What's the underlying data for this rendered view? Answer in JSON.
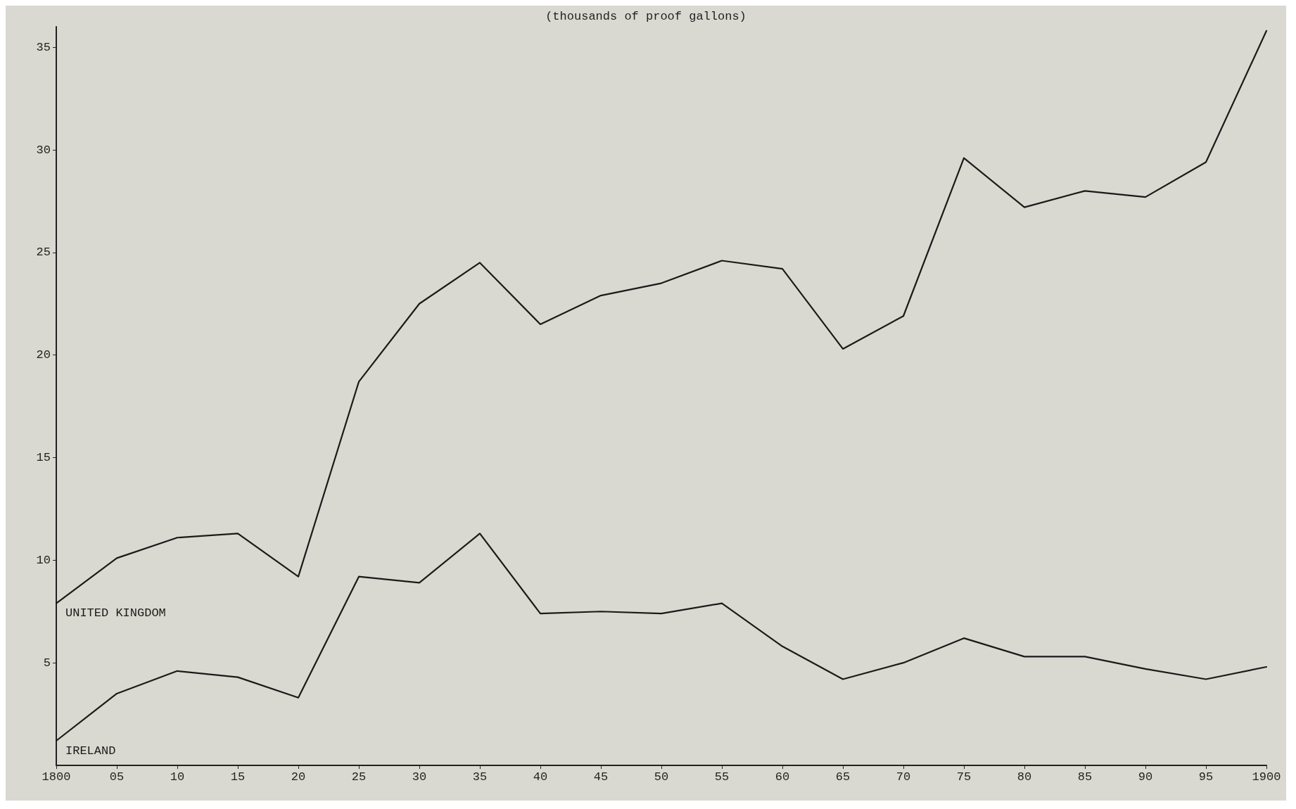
{
  "chart_data": {
    "type": "line",
    "title": "(thousands of proof gallons)",
    "x": [
      1800,
      1805,
      1810,
      1815,
      1820,
      1825,
      1830,
      1835,
      1840,
      1845,
      1850,
      1855,
      1860,
      1865,
      1870,
      1875,
      1880,
      1885,
      1890,
      1895,
      1900
    ],
    "series": [
      {
        "name": "UNITED KINGDOM",
        "color": "#1a1a1a",
        "values": [
          7.9,
          10.1,
          11.1,
          11.3,
          9.2,
          18.7,
          22.5,
          24.5,
          21.5,
          22.9,
          23.5,
          24.6,
          24.2,
          20.3,
          21.9,
          29.6,
          27.2,
          28.0,
          27.7,
          29.4,
          35.8
        ]
      },
      {
        "name": "IRELAND",
        "color": "#1a1a1a",
        "values": [
          1.2,
          3.5,
          4.6,
          4.3,
          3.3,
          9.2,
          8.9,
          11.3,
          7.4,
          7.5,
          7.4,
          7.9,
          5.8,
          4.2,
          5.0,
          6.2,
          5.3,
          5.3,
          4.7,
          4.2,
          4.8
        ]
      }
    ],
    "xlim": [
      1800,
      1900
    ],
    "xticks": [
      1800,
      {
        "value": 1805,
        "label": "05"
      },
      {
        "value": 1810,
        "label": "10"
      },
      {
        "value": 1815,
        "label": "15"
      },
      {
        "value": 1820,
        "label": "20"
      },
      {
        "value": 1825,
        "label": "25"
      },
      {
        "value": 1830,
        "label": "30"
      },
      {
        "value": 1835,
        "label": "35"
      },
      {
        "value": 1840,
        "label": "40"
      },
      {
        "value": 1845,
        "label": "45"
      },
      {
        "value": 1850,
        "label": "50"
      },
      {
        "value": 1855,
        "label": "55"
      },
      {
        "value": 1860,
        "label": "60"
      },
      {
        "value": 1865,
        "label": "65"
      },
      {
        "value": 1870,
        "label": "70"
      },
      {
        "value": 1875,
        "label": "75"
      },
      {
        "value": 1880,
        "label": "80"
      },
      {
        "value": 1885,
        "label": "85"
      },
      {
        "value": 1890,
        "label": "90"
      },
      {
        "value": 1895,
        "label": "95"
      },
      1900
    ],
    "ylim": [
      0,
      36
    ],
    "yticks": [
      5,
      10,
      15,
      20,
      25,
      30,
      35
    ],
    "legend": false,
    "grid": false,
    "marker": "none",
    "line_style": "solid"
  }
}
